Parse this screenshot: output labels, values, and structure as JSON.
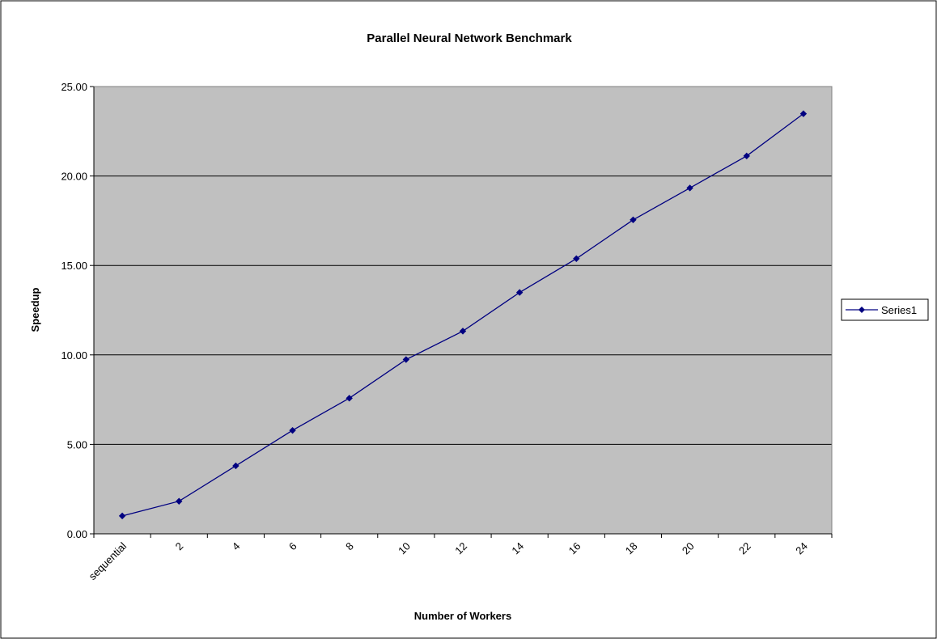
{
  "chart_data": {
    "type": "line",
    "title": "Parallel Neural Network Benchmark",
    "xlabel": "Number of Workers",
    "ylabel": "Speedup",
    "categories": [
      "sequential",
      "2",
      "4",
      "6",
      "8",
      "10",
      "12",
      "14",
      "16",
      "18",
      "20",
      "22",
      "24"
    ],
    "series": [
      {
        "name": "Series1",
        "values": [
          1.0,
          1.82,
          3.8,
          5.78,
          7.58,
          9.74,
          11.33,
          13.49,
          15.38,
          17.55,
          19.33,
          21.12,
          23.48
        ]
      }
    ],
    "ylim": [
      0,
      25
    ],
    "yticks": [
      "0.00",
      "5.00",
      "10.00",
      "15.00",
      "20.00",
      "25.00"
    ],
    "grid": true,
    "legend": "right",
    "colors": {
      "plot_background": "#c0c0c0",
      "line": "#000080",
      "gridline": "#000000",
      "border": "#000000"
    }
  }
}
